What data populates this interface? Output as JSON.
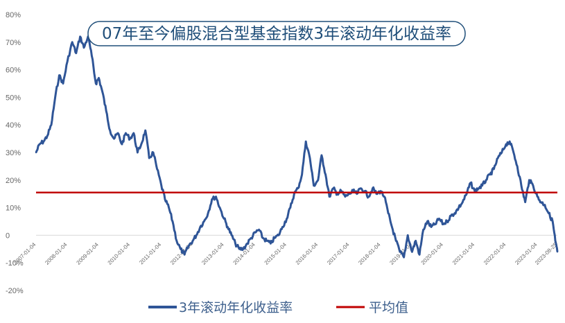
{
  "chart_data": {
    "type": "line",
    "title": "07年至今偏股混合型基金指数3年滚动年化收益率",
    "xlabel": "",
    "ylabel": "",
    "ylim": [
      -20,
      80
    ],
    "y_ticks": [
      -20,
      -10,
      0,
      10,
      20,
      30,
      40,
      50,
      60,
      70,
      80
    ],
    "y_tick_labels": [
      "-20%",
      "-10%",
      "0",
      "10%",
      "20%",
      "30%",
      "40%",
      "50%",
      "60%",
      "70%",
      "80%"
    ],
    "x_tick_labels": [
      "2007-01-04",
      "2008-01-04",
      "2009-01-04",
      "2010-01-04",
      "2011-01-04",
      "2012-01-04",
      "2013-01-04",
      "2014-01-04",
      "2015-01-04",
      "2016-01-04",
      "2017-01-04",
      "2018-01-04",
      "2019-01-04",
      "2020-01-04",
      "2021-01-04",
      "2022-01-04",
      "2023-01-04",
      "2023-08-25"
    ],
    "x_range": [
      "2007-01-04",
      "2023-08-25"
    ],
    "grid": false,
    "legend_position": "bottom",
    "series": [
      {
        "name": "3年滚动年化收益率",
        "color": "#2f5597",
        "points": [
          [
            "2007-01-04",
            30
          ],
          [
            "2007-02-15",
            33
          ],
          [
            "2007-04-01",
            34
          ],
          [
            "2007-05-15",
            36
          ],
          [
            "2007-07-01",
            40
          ],
          [
            "2007-08-15",
            50
          ],
          [
            "2007-10-01",
            58
          ],
          [
            "2007-11-15",
            55
          ],
          [
            "2008-01-04",
            63
          ],
          [
            "2008-03-01",
            70
          ],
          [
            "2008-04-15",
            66
          ],
          [
            "2008-06-01",
            72
          ],
          [
            "2008-07-15",
            68
          ],
          [
            "2008-09-01",
            72
          ],
          [
            "2008-10-15",
            65
          ],
          [
            "2008-12-01",
            55
          ],
          [
            "2009-01-04",
            57
          ],
          [
            "2009-02-15",
            52
          ],
          [
            "2009-04-01",
            45
          ],
          [
            "2009-05-15",
            38
          ],
          [
            "2009-07-01",
            35
          ],
          [
            "2009-08-15",
            37
          ],
          [
            "2009-10-01",
            33
          ],
          [
            "2009-11-15",
            37
          ],
          [
            "2010-01-04",
            35
          ],
          [
            "2010-02-15",
            37
          ],
          [
            "2010-04-01",
            30
          ],
          [
            "2010-05-15",
            33
          ],
          [
            "2010-07-01",
            38
          ],
          [
            "2010-08-15",
            28
          ],
          [
            "2010-10-01",
            30
          ],
          [
            "2010-11-15",
            24
          ],
          [
            "2011-01-04",
            18
          ],
          [
            "2011-02-15",
            13
          ],
          [
            "2011-04-01",
            10
          ],
          [
            "2011-05-15",
            5
          ],
          [
            "2011-07-01",
            -2
          ],
          [
            "2011-08-15",
            -5
          ],
          [
            "2011-10-01",
            -7
          ],
          [
            "2011-11-15",
            -4
          ],
          [
            "2012-01-04",
            -2
          ],
          [
            "2012-02-15",
            0
          ],
          [
            "2012-04-01",
            3
          ],
          [
            "2012-05-15",
            5
          ],
          [
            "2012-07-01",
            8
          ],
          [
            "2012-08-15",
            13
          ],
          [
            "2012-10-01",
            14
          ],
          [
            "2012-11-15",
            10
          ],
          [
            "2013-01-04",
            6
          ],
          [
            "2013-02-15",
            3
          ],
          [
            "2013-04-01",
            0
          ],
          [
            "2013-05-15",
            -3
          ],
          [
            "2013-07-01",
            -5
          ],
          [
            "2013-08-15",
            -5
          ],
          [
            "2013-10-01",
            -3
          ],
          [
            "2013-11-15",
            -1
          ],
          [
            "2014-01-04",
            1
          ],
          [
            "2014-02-15",
            2
          ],
          [
            "2014-04-01",
            -1
          ],
          [
            "2014-05-15",
            -2
          ],
          [
            "2014-07-01",
            -3
          ],
          [
            "2014-08-15",
            -1
          ],
          [
            "2014-10-01",
            0
          ],
          [
            "2014-11-15",
            3
          ],
          [
            "2015-01-04",
            6
          ],
          [
            "2015-02-15",
            10
          ],
          [
            "2015-04-01",
            15
          ],
          [
            "2015-05-15",
            17
          ],
          [
            "2015-07-01",
            22
          ],
          [
            "2015-08-15",
            34
          ],
          [
            "2015-10-01",
            28
          ],
          [
            "2015-11-15",
            18
          ],
          [
            "2016-01-04",
            20
          ],
          [
            "2016-02-15",
            29
          ],
          [
            "2016-04-01",
            22
          ],
          [
            "2016-05-15",
            14
          ],
          [
            "2016-07-01",
            17
          ],
          [
            "2016-08-15",
            15
          ],
          [
            "2016-10-01",
            16
          ],
          [
            "2016-11-15",
            14
          ],
          [
            "2017-01-04",
            15
          ],
          [
            "2017-02-15",
            16
          ],
          [
            "2017-04-01",
            15
          ],
          [
            "2017-05-15",
            17
          ],
          [
            "2017-07-01",
            16
          ],
          [
            "2017-08-15",
            14
          ],
          [
            "2017-10-01",
            17
          ],
          [
            "2017-11-15",
            15
          ],
          [
            "2018-01-04",
            16
          ],
          [
            "2018-02-15",
            14
          ],
          [
            "2018-04-01",
            8
          ],
          [
            "2018-05-15",
            3
          ],
          [
            "2018-07-01",
            -2
          ],
          [
            "2018-08-15",
            -6
          ],
          [
            "2018-10-01",
            -8
          ],
          [
            "2018-11-15",
            0
          ],
          [
            "2019-01-04",
            -6
          ],
          [
            "2019-02-15",
            -2
          ],
          [
            "2019-04-01",
            -7
          ],
          [
            "2019-05-15",
            2
          ],
          [
            "2019-07-01",
            5
          ],
          [
            "2019-08-15",
            3
          ],
          [
            "2019-10-01",
            4
          ],
          [
            "2019-11-15",
            6
          ],
          [
            "2020-01-04",
            4
          ],
          [
            "2020-02-15",
            5
          ],
          [
            "2020-04-01",
            7
          ],
          [
            "2020-05-15",
            8
          ],
          [
            "2020-07-01",
            10
          ],
          [
            "2020-08-15",
            12
          ],
          [
            "2020-10-01",
            15
          ],
          [
            "2020-11-15",
            19
          ],
          [
            "2021-01-04",
            16
          ],
          [
            "2021-02-15",
            17
          ],
          [
            "2021-04-01",
            18
          ],
          [
            "2021-05-15",
            20
          ],
          [
            "2021-07-01",
            22
          ],
          [
            "2021-08-15",
            24
          ],
          [
            "2021-10-01",
            28
          ],
          [
            "2021-11-15",
            30
          ],
          [
            "2022-01-04",
            33
          ],
          [
            "2022-02-15",
            34
          ],
          [
            "2022-04-01",
            30
          ],
          [
            "2022-05-15",
            25
          ],
          [
            "2022-07-01",
            18
          ],
          [
            "2022-08-15",
            12
          ],
          [
            "2022-10-01",
            20
          ],
          [
            "2022-11-15",
            18
          ],
          [
            "2023-01-04",
            14
          ],
          [
            "2023-02-15",
            12
          ],
          [
            "2023-04-01",
            11
          ],
          [
            "2023-05-15",
            8
          ],
          [
            "2023-07-01",
            5
          ],
          [
            "2023-08-01",
            -2
          ],
          [
            "2023-08-25",
            -6
          ]
        ]
      },
      {
        "name": "平均值",
        "color": "#c00000",
        "value": 15.5
      }
    ]
  }
}
